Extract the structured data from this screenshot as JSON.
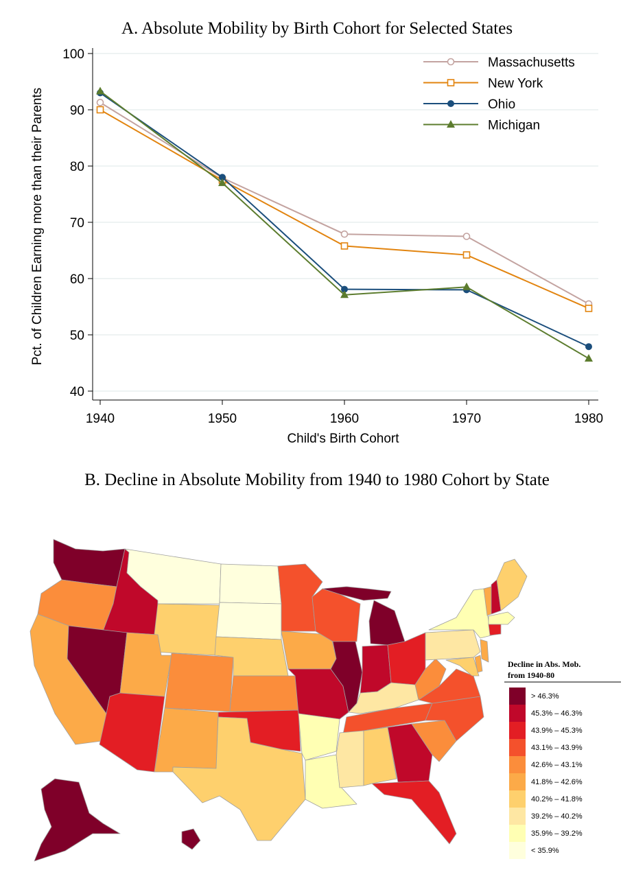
{
  "panel_a": {
    "title": "A.  Absolute Mobility by Birth Cohort for Selected States"
  },
  "panel_b": {
    "title": "B. Decline in Absolute Mobility from 1940 to 1980 Cohort by State",
    "legend_title_1": "Decline in Abs. Mob.",
    "legend_title_2": "from 1940-80",
    "legend": [
      {
        "label": "> 46.3%",
        "color": "#7f0029"
      },
      {
        "label": "45.3% – 46.3%",
        "color": "#c0082a"
      },
      {
        "label": "43.9% – 45.3%",
        "color": "#e31e24"
      },
      {
        "label": "43.1% – 43.9%",
        "color": "#f4512c"
      },
      {
        "label": "42.6% – 43.1%",
        "color": "#fb8d3b"
      },
      {
        "label": "41.8% – 42.6%",
        "color": "#fcaa48"
      },
      {
        "label": "40.2% – 41.8%",
        "color": "#fed06d"
      },
      {
        "label": "39.2% – 40.2%",
        "color": "#fee7a3"
      },
      {
        "label": "35.9% – 39.2%",
        "color": "#ffffb3"
      },
      {
        "label": "< 35.9%",
        "color": "#ffffdd"
      }
    ]
  },
  "chart_data": {
    "type": "line",
    "title": "A.  Absolute Mobility by Birth Cohort for Selected States",
    "xlabel": "Child's Birth Cohort",
    "ylabel": "Pct. of Children Earning more than their Parents",
    "x": [
      1940,
      1950,
      1960,
      1970,
      1980
    ],
    "xlim": [
      1940,
      1980
    ],
    "ylim": [
      40,
      100
    ],
    "yticks": [
      40,
      50,
      60,
      70,
      80,
      90,
      100
    ],
    "grid": true,
    "legend_position": "top-right",
    "series": [
      {
        "name": "Massachusetts",
        "values": [
          91.3,
          77.9,
          67.9,
          67.5,
          55.5
        ],
        "color": "#c3a3a0",
        "marker": "circle-open"
      },
      {
        "name": "New York",
        "values": [
          90.0,
          77.5,
          65.8,
          64.2,
          54.7
        ],
        "color": "#e2840f",
        "marker": "square-open"
      },
      {
        "name": "Ohio",
        "values": [
          93.0,
          78.0,
          58.1,
          58.0,
          47.9
        ],
        "color": "#1b4e7c",
        "marker": "circle-filled"
      },
      {
        "name": "Michigan",
        "values": [
          93.3,
          77.0,
          57.1,
          58.5,
          45.8
        ],
        "color": "#5c7c2e",
        "marker": "triangle-filled"
      }
    ]
  }
}
